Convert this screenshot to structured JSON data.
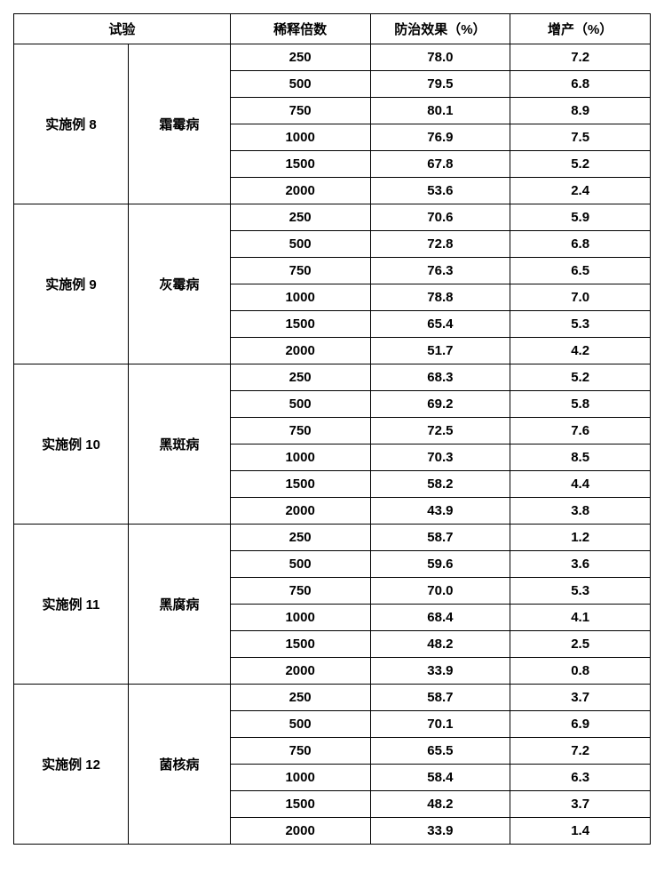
{
  "headers": {
    "trial": "试验",
    "dilution": "稀释倍数",
    "effect": "防治效果（%）",
    "yield": "增产（%）"
  },
  "groups": [
    {
      "experiment": "实施例 8",
      "disease": "霜霉病",
      "rows": [
        {
          "dilution": "250",
          "effect": "78.0",
          "yield": "7.2"
        },
        {
          "dilution": "500",
          "effect": "79.5",
          "yield": "6.8"
        },
        {
          "dilution": "750",
          "effect": "80.1",
          "yield": "8.9"
        },
        {
          "dilution": "1000",
          "effect": "76.9",
          "yield": "7.5"
        },
        {
          "dilution": "1500",
          "effect": "67.8",
          "yield": "5.2"
        },
        {
          "dilution": "2000",
          "effect": "53.6",
          "yield": "2.4"
        }
      ]
    },
    {
      "experiment": "实施例 9",
      "disease": "灰霉病",
      "rows": [
        {
          "dilution": "250",
          "effect": "70.6",
          "yield": "5.9"
        },
        {
          "dilution": "500",
          "effect": "72.8",
          "yield": "6.8"
        },
        {
          "dilution": "750",
          "effect": "76.3",
          "yield": "6.5"
        },
        {
          "dilution": "1000",
          "effect": "78.8",
          "yield": "7.0"
        },
        {
          "dilution": "1500",
          "effect": "65.4",
          "yield": "5.3"
        },
        {
          "dilution": "2000",
          "effect": "51.7",
          "yield": "4.2"
        }
      ]
    },
    {
      "experiment": "实施例 10",
      "disease": "黑斑病",
      "rows": [
        {
          "dilution": "250",
          "effect": "68.3",
          "yield": "5.2"
        },
        {
          "dilution": "500",
          "effect": "69.2",
          "yield": "5.8"
        },
        {
          "dilution": "750",
          "effect": "72.5",
          "yield": "7.6"
        },
        {
          "dilution": "1000",
          "effect": "70.3",
          "yield": "8.5"
        },
        {
          "dilution": "1500",
          "effect": "58.2",
          "yield": "4.4"
        },
        {
          "dilution": "2000",
          "effect": "43.9",
          "yield": "3.8"
        }
      ]
    },
    {
      "experiment": "实施例 11",
      "disease": "黑腐病",
      "rows": [
        {
          "dilution": "250",
          "effect": "58.7",
          "yield": "1.2"
        },
        {
          "dilution": "500",
          "effect": "59.6",
          "yield": "3.6"
        },
        {
          "dilution": "750",
          "effect": "70.0",
          "yield": "5.3"
        },
        {
          "dilution": "1000",
          "effect": "68.4",
          "yield": "4.1"
        },
        {
          "dilution": "1500",
          "effect": "48.2",
          "yield": "2.5"
        },
        {
          "dilution": "2000",
          "effect": "33.9",
          "yield": "0.8"
        }
      ]
    },
    {
      "experiment": "实施例 12",
      "disease": "菌核病",
      "rows": [
        {
          "dilution": "250",
          "effect": "58.7",
          "yield": "3.7"
        },
        {
          "dilution": "500",
          "effect": "70.1",
          "yield": "6.9"
        },
        {
          "dilution": "750",
          "effect": "65.5",
          "yield": "7.2"
        },
        {
          "dilution": "1000",
          "effect": "58.4",
          "yield": "6.3"
        },
        {
          "dilution": "1500",
          "effect": "48.2",
          "yield": "3.7"
        },
        {
          "dilution": "2000",
          "effect": "33.9",
          "yield": "1.4"
        }
      ]
    }
  ]
}
